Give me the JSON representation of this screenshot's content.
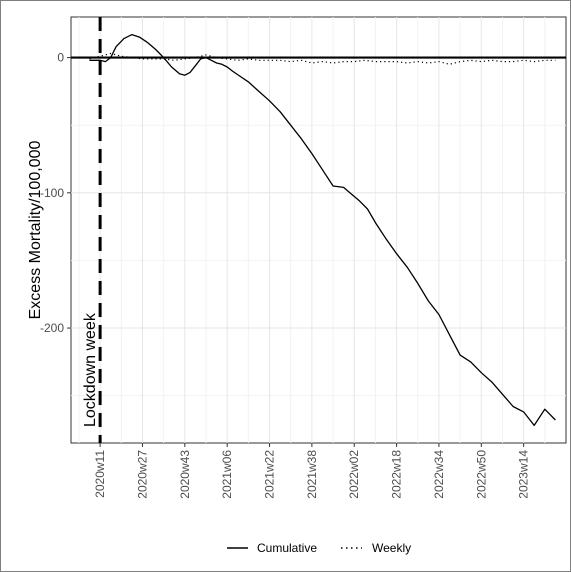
{
  "chart_data": {
    "type": "line",
    "ylabel": "Excess Mortality/100,000",
    "xlabel": "",
    "ylim": [
      -285,
      30
    ],
    "y_ticks": [
      0,
      -100,
      -200
    ],
    "y_tick_labels": [
      "0",
      "-100",
      "-200"
    ],
    "x_tick_labels": [
      "2020w11",
      "2020w27",
      "2020w43",
      "2021w06",
      "2021w22",
      "2021w38",
      "2022w02",
      "2022w18",
      "2022w34",
      "2022w50",
      "2023w14"
    ],
    "x_tick_weeks": [
      0,
      16,
      32,
      48,
      64,
      80,
      96,
      112,
      128,
      144,
      160
    ],
    "xlim": [
      -11,
      176
    ],
    "grid": true,
    "legend_position": "bottom",
    "annotations": [
      {
        "type": "vline",
        "x_week": 0,
        "label": "Lockdown week"
      }
    ],
    "series": [
      {
        "name": "Cumulative",
        "style": "solid",
        "x": [
          -4,
          0,
          2,
          4,
          6,
          9,
          12,
          15,
          18,
          21,
          24,
          27,
          30,
          32,
          34,
          36,
          38,
          40,
          42,
          44,
          46,
          48,
          50,
          53,
          56,
          60,
          64,
          68,
          72,
          76,
          80,
          84,
          88,
          92,
          95,
          98,
          101,
          104,
          108,
          112,
          116,
          120,
          124,
          128,
          132,
          136,
          140,
          144,
          148,
          152,
          156,
          160,
          164,
          168,
          172
        ],
        "y": [
          -2,
          -2,
          -3,
          0,
          8,
          14,
          17,
          15,
          11,
          6,
          0,
          -7,
          -12,
          -13,
          -11,
          -6,
          -1,
          0,
          -2,
          -4,
          -5,
          -7,
          -10,
          -14,
          -18,
          -25,
          -32,
          -40,
          -50,
          -60,
          -71,
          -83,
          -95,
          -96,
          -101,
          -106,
          -112,
          -122,
          -134,
          -145,
          -155,
          -167,
          -180,
          -190,
          -205,
          -220,
          -225,
          -233,
          -240,
          -249,
          -258,
          -262,
          -272,
          -260,
          -268
        ]
      },
      {
        "name": "Weekly",
        "style": "dotted",
        "x": [
          -4,
          0,
          4,
          8,
          12,
          16,
          20,
          24,
          28,
          32,
          36,
          40,
          44,
          48,
          52,
          56,
          60,
          64,
          68,
          72,
          76,
          80,
          84,
          88,
          92,
          96,
          100,
          104,
          108,
          112,
          116,
          120,
          124,
          128,
          132,
          136,
          140,
          144,
          148,
          152,
          156,
          160,
          164,
          168,
          172
        ],
        "y": [
          -1,
          1,
          3,
          1,
          0,
          -1,
          -1,
          -1,
          -2,
          -1,
          0,
          2,
          0,
          -1,
          -2,
          -1,
          -2,
          -2,
          -2,
          -3,
          -2,
          -4,
          -3,
          -4,
          -3,
          -3,
          -2,
          -3,
          -3,
          -3,
          -4,
          -3,
          -4,
          -3,
          -5,
          -3,
          -2,
          -3,
          -2,
          -3,
          -3,
          -2,
          -3,
          -2,
          -2
        ]
      }
    ]
  }
}
